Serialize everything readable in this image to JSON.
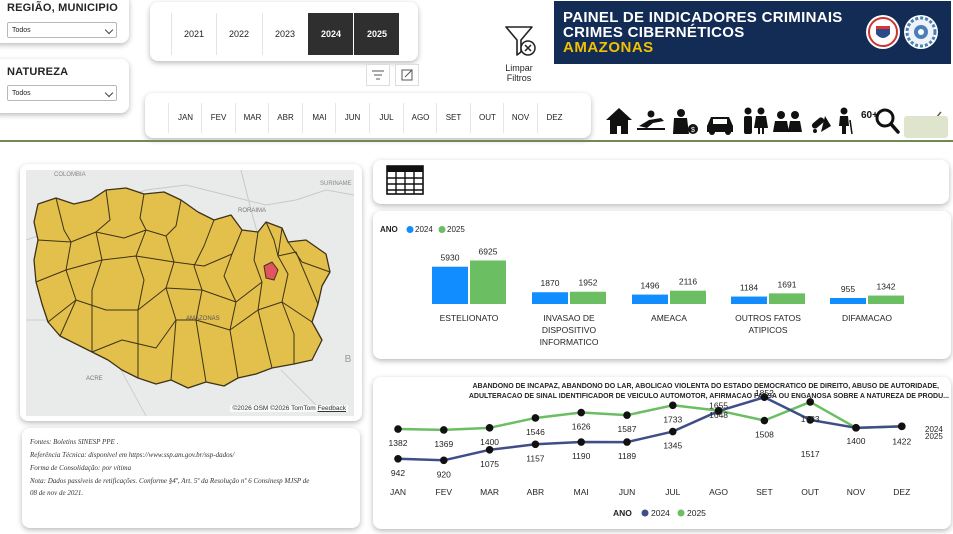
{
  "filters": {
    "regiao_label": "REGIÃO, MUNICIPIO",
    "regiao_value": "Todos",
    "natureza_label": "NATUREZA",
    "natureza_value": "Todos"
  },
  "years": [
    {
      "label": "2021",
      "selected": false
    },
    {
      "label": "2022",
      "selected": false
    },
    {
      "label": "2023",
      "selected": false
    },
    {
      "label": "2024",
      "selected": true
    },
    {
      "label": "2025",
      "selected": true
    }
  ],
  "months": [
    "JAN",
    "FEV",
    "MAR",
    "ABR",
    "MAI",
    "JUN",
    "JUL",
    "AGO",
    "SET",
    "OUT",
    "NOV",
    "DEZ"
  ],
  "clear_filters": {
    "line1": "Limpar",
    "line2": "Filtros"
  },
  "banner": {
    "line1": "PAINEL DE INDICADORES CRIMINAIS",
    "line2": "CRIMES CIBERNÉTICOS",
    "line3": "AMAZONAS"
  },
  "nav_icons": [
    "home-icon",
    "reclining-person-icon",
    "robbery-icon",
    "car-icon",
    "couple-icon",
    "children-icon",
    "drugs-icon",
    "elderly-60-icon",
    "search-icon",
    "tree-stump-icon"
  ],
  "map": {
    "labels": {
      "colombia": "COLOMBIA",
      "suriname": "SURINAME",
      "roraima": "RORAIMA",
      "amazonas": "AMAZONAS",
      "acre": "ACRE"
    },
    "attribution": "©2026 OSM ©2026 TomTom",
    "feedback": "Feedback"
  },
  "notes": {
    "line1": "Fontes: Boletins SINESP PPE .",
    "line2": "Referência Técnica: disponível em https://www.ssp.am.gov.br/ssp-dados/",
    "line3": "Forma de Consolidação: por vítima",
    "line4": "Nota: Dados passíveis de retificações. Conforme §4º, Art. 5º da Resolução nº 6 Consinesp MJSP de",
    "line5": "08 de nov de 2021."
  },
  "colors": {
    "y2024": "#118dff",
    "y2025": "#6cbe63",
    "line2024": "#3f4e87",
    "line2025": "#6cbe63",
    "banner": "#132c55",
    "banner_accent": "#f3c000",
    "map_fill": "#e3bf4b",
    "map_highlight": "#e05560"
  },
  "chart_data": [
    {
      "type": "bar",
      "legend_title": "ANO",
      "categories": [
        "ESTELIONATO",
        "INVASAO DE DISPOSITIVO INFORMATICO",
        "AMEACA",
        "OUTROS FATOS ATIPICOS",
        "DIFAMACAO"
      ],
      "series": [
        {
          "name": "2024",
          "values": [
            5930,
            1870,
            1496,
            1184,
            955
          ]
        },
        {
          "name": "2025",
          "values": [
            6925,
            1952,
            2116,
            1691,
            1342
          ]
        }
      ],
      "grid": false,
      "legend_position": "top-left"
    },
    {
      "type": "line",
      "title_line1": "ABANDONO DE INCAPAZ, ABANDONO DO LAR, ABOLICAO VIOLENTA DO ESTADO DEMOCRATICO DE DIREITO, ABUSO DE AUTORIDADE,",
      "title_line2": "ADULTERACAO DE SINAL IDENTIFICADOR DE VEICULO AUTOMOTOR, AFIRMACAO FALSA OU ENGANOSA SOBRE A NATUREZA DE PRODU...",
      "legend_title": "ANO",
      "x": [
        "JAN",
        "FEV",
        "MAR",
        "ABR",
        "MAI",
        "JUN",
        "JUL",
        "AGO",
        "SET",
        "OUT",
        "NOV",
        "DEZ"
      ],
      "series": [
        {
          "name": "2024",
          "values": [
            942,
            920,
            1075,
            1157,
            1190,
            1189,
            1345,
            1648,
            1852,
            1517,
            1400,
            1422
          ]
        },
        {
          "name": "2025",
          "values": [
            1382,
            1369,
            1400,
            1546,
            1626,
            1587,
            1733,
            1655,
            1508,
            1783,
            1400,
            1422
          ]
        }
      ],
      "end_labels": [
        "2024",
        "2025"
      ],
      "grid": false,
      "legend_position": "bottom"
    }
  ]
}
